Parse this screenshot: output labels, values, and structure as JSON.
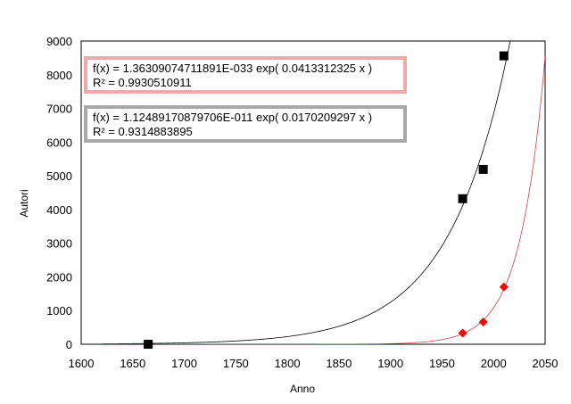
{
  "chart_data": {
    "type": "scatter",
    "title": "",
    "xlabel": "Anno",
    "ylabel": "Autori",
    "xlim": [
      1600,
      2050
    ],
    "ylim": [
      0,
      9000
    ],
    "x_ticks": [
      1600,
      1650,
      1700,
      1750,
      1800,
      1850,
      1900,
      1950,
      2000,
      2050
    ],
    "y_ticks": [
      0,
      1000,
      2000,
      3000,
      4000,
      5000,
      6000,
      7000,
      8000,
      9000
    ],
    "grid": false,
    "series": [
      {
        "marker": "square",
        "color": "#000000",
        "points": [
          [
            1665,
            0
          ],
          [
            1970,
            4320
          ],
          [
            1990,
            5190
          ],
          [
            2010,
            8560
          ]
        ],
        "trendline": {
          "type": "exponential",
          "a": 1.12489170879706e-11,
          "b": 0.0170209297,
          "color": "#000000",
          "x_range": [
            1620,
            2050
          ]
        }
      },
      {
        "marker": "diamond",
        "color": "#ff0000",
        "points": [
          [
            1970,
            330
          ],
          [
            1990,
            660
          ],
          [
            2010,
            1700
          ]
        ],
        "trendline": {
          "type": "exponential",
          "a": 1.36309074711891e-33,
          "b": 0.0413312325,
          "color": "#d04040",
          "x_range": [
            1620,
            2050
          ]
        }
      }
    ],
    "annotations": [
      {
        "line1": "f(x) = 1.36309074711891E-033 exp( 0.0413312325 x )",
        "line2": "R² = 0.9930510911",
        "border_color": "#f0a8a8"
      },
      {
        "line1": "f(x) = 1.12489170879706E-011 exp( 0.0170209297 x )",
        "line2": "R² = 0.9314883895",
        "border_color": "#a8a8a8"
      }
    ]
  }
}
